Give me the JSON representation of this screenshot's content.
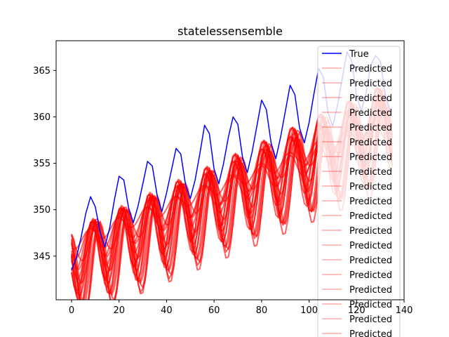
{
  "chart_data": {
    "type": "line",
    "title": "statelessensemble",
    "xlabel": "",
    "ylabel": "",
    "xlim": [
      -6.5,
      140
    ],
    "ylim": [
      340.3,
      368.2
    ],
    "xticks": [
      0,
      20,
      40,
      60,
      80,
      100,
      120,
      140
    ],
    "yticks": [
      345,
      350,
      355,
      360,
      365
    ],
    "xtick_labels": [
      "0",
      "20",
      "40",
      "60",
      "80",
      "100",
      "120",
      "140"
    ],
    "ytick_labels": [
      "345",
      "350",
      "355",
      "360",
      "365"
    ],
    "legend_position": "top-right",
    "true_series": {
      "name": "True",
      "color": "#0000ff",
      "x": [
        0,
        2,
        4,
        6,
        8,
        10,
        12,
        14,
        16,
        18,
        20,
        22,
        24,
        26,
        28,
        30,
        32,
        34,
        36,
        38,
        40,
        42,
        44,
        46,
        48,
        50,
        52,
        54,
        56,
        58,
        60,
        62,
        64,
        66,
        68,
        70,
        72,
        74,
        76,
        78,
        80,
        82,
        84,
        86,
        88,
        90,
        92,
        94,
        96,
        98,
        100,
        102,
        104,
        106,
        108,
        110,
        112,
        114,
        116,
        118,
        120,
        122,
        124,
        126,
        128,
        130,
        132,
        134
      ],
      "y": [
        343.5,
        344.8,
        347.0,
        349.6,
        351.4,
        350.3,
        347.6,
        346.0,
        348.0,
        351.0,
        353.6,
        353.2,
        350.2,
        348.6,
        350.4,
        352.8,
        355.2,
        354.7,
        351.6,
        349.8,
        351.8,
        354.2,
        356.6,
        356.0,
        352.7,
        351.2,
        353.2,
        356.0,
        359.1,
        358.2,
        354.4,
        352.8,
        355.0,
        357.8,
        360.0,
        359.2,
        355.6,
        354.0,
        356.2,
        359.0,
        361.8,
        360.8,
        357.2,
        355.5,
        357.8,
        360.6,
        363.4,
        362.4,
        358.8,
        357.2,
        359.4,
        362.4,
        365.2,
        364.3,
        360.4,
        359.0,
        361.3,
        364.2,
        367.0,
        366.0,
        362.2,
        360.6,
        362.6,
        365.6,
        366.6,
        366.0,
        362.4,
        360.8
      ]
    },
    "predicted_series": {
      "name": "Predicted",
      "color": "#ff0000",
      "count": 19,
      "x_start": 0,
      "x_end": 135,
      "x_step": 1,
      "period": 12,
      "members": [
        {
          "start": 344.2,
          "end": 360.4,
          "amplitude": 3.6,
          "lag": 1.0
        },
        {
          "start": 343.2,
          "end": 359.4,
          "amplitude": 4.2,
          "lag": 2.4
        },
        {
          "start": 342.4,
          "end": 358.6,
          "amplitude": 4.8,
          "lag": 3.8
        },
        {
          "start": 345.4,
          "end": 360.8,
          "amplitude": 2.0,
          "lag": 0.6
        },
        {
          "start": 346.4,
          "end": 359.6,
          "amplitude": 0.8,
          "lag": 0.0
        },
        {
          "start": 344.8,
          "end": 359.0,
          "amplitude": 3.2,
          "lag": 1.8
        },
        {
          "start": 343.6,
          "end": 357.8,
          "amplitude": 4.4,
          "lag": 3.0
        },
        {
          "start": 342.8,
          "end": 358.2,
          "amplitude": 4.6,
          "lag": 4.4
        },
        {
          "start": 345.0,
          "end": 361.0,
          "amplitude": 2.8,
          "lag": 1.2
        },
        {
          "start": 344.0,
          "end": 359.8,
          "amplitude": 3.8,
          "lag": 2.0
        },
        {
          "start": 346.0,
          "end": 358.4,
          "amplitude": 1.4,
          "lag": 0.4
        },
        {
          "start": 343.0,
          "end": 357.4,
          "amplitude": 4.0,
          "lag": 3.4
        },
        {
          "start": 344.6,
          "end": 360.0,
          "amplitude": 3.0,
          "lag": 2.8
        },
        {
          "start": 345.6,
          "end": 361.4,
          "amplitude": 2.4,
          "lag": 1.5
        },
        {
          "start": 343.4,
          "end": 358.8,
          "amplitude": 4.3,
          "lag": 2.2
        },
        {
          "start": 344.4,
          "end": 359.2,
          "amplitude": 3.4,
          "lag": 0.8
        },
        {
          "start": 342.6,
          "end": 357.0,
          "amplitude": 4.9,
          "lag": 4.0
        },
        {
          "start": 345.8,
          "end": 360.2,
          "amplitude": 1.8,
          "lag": 3.2
        },
        {
          "start": 344.0,
          "end": 358.0,
          "amplitude": 3.9,
          "lag": 1.4
        }
      ]
    },
    "legend": [
      "True",
      "Predicted",
      "Predicted",
      "Predicted",
      "Predicted",
      "Predicted",
      "Predicted",
      "Predicted",
      "Predicted",
      "Predicted",
      "Predicted",
      "Predicted",
      "Predicted",
      "Predicted",
      "Predicted",
      "Predicted",
      "Predicted",
      "Predicted",
      "Predicted",
      "Predicted"
    ]
  }
}
